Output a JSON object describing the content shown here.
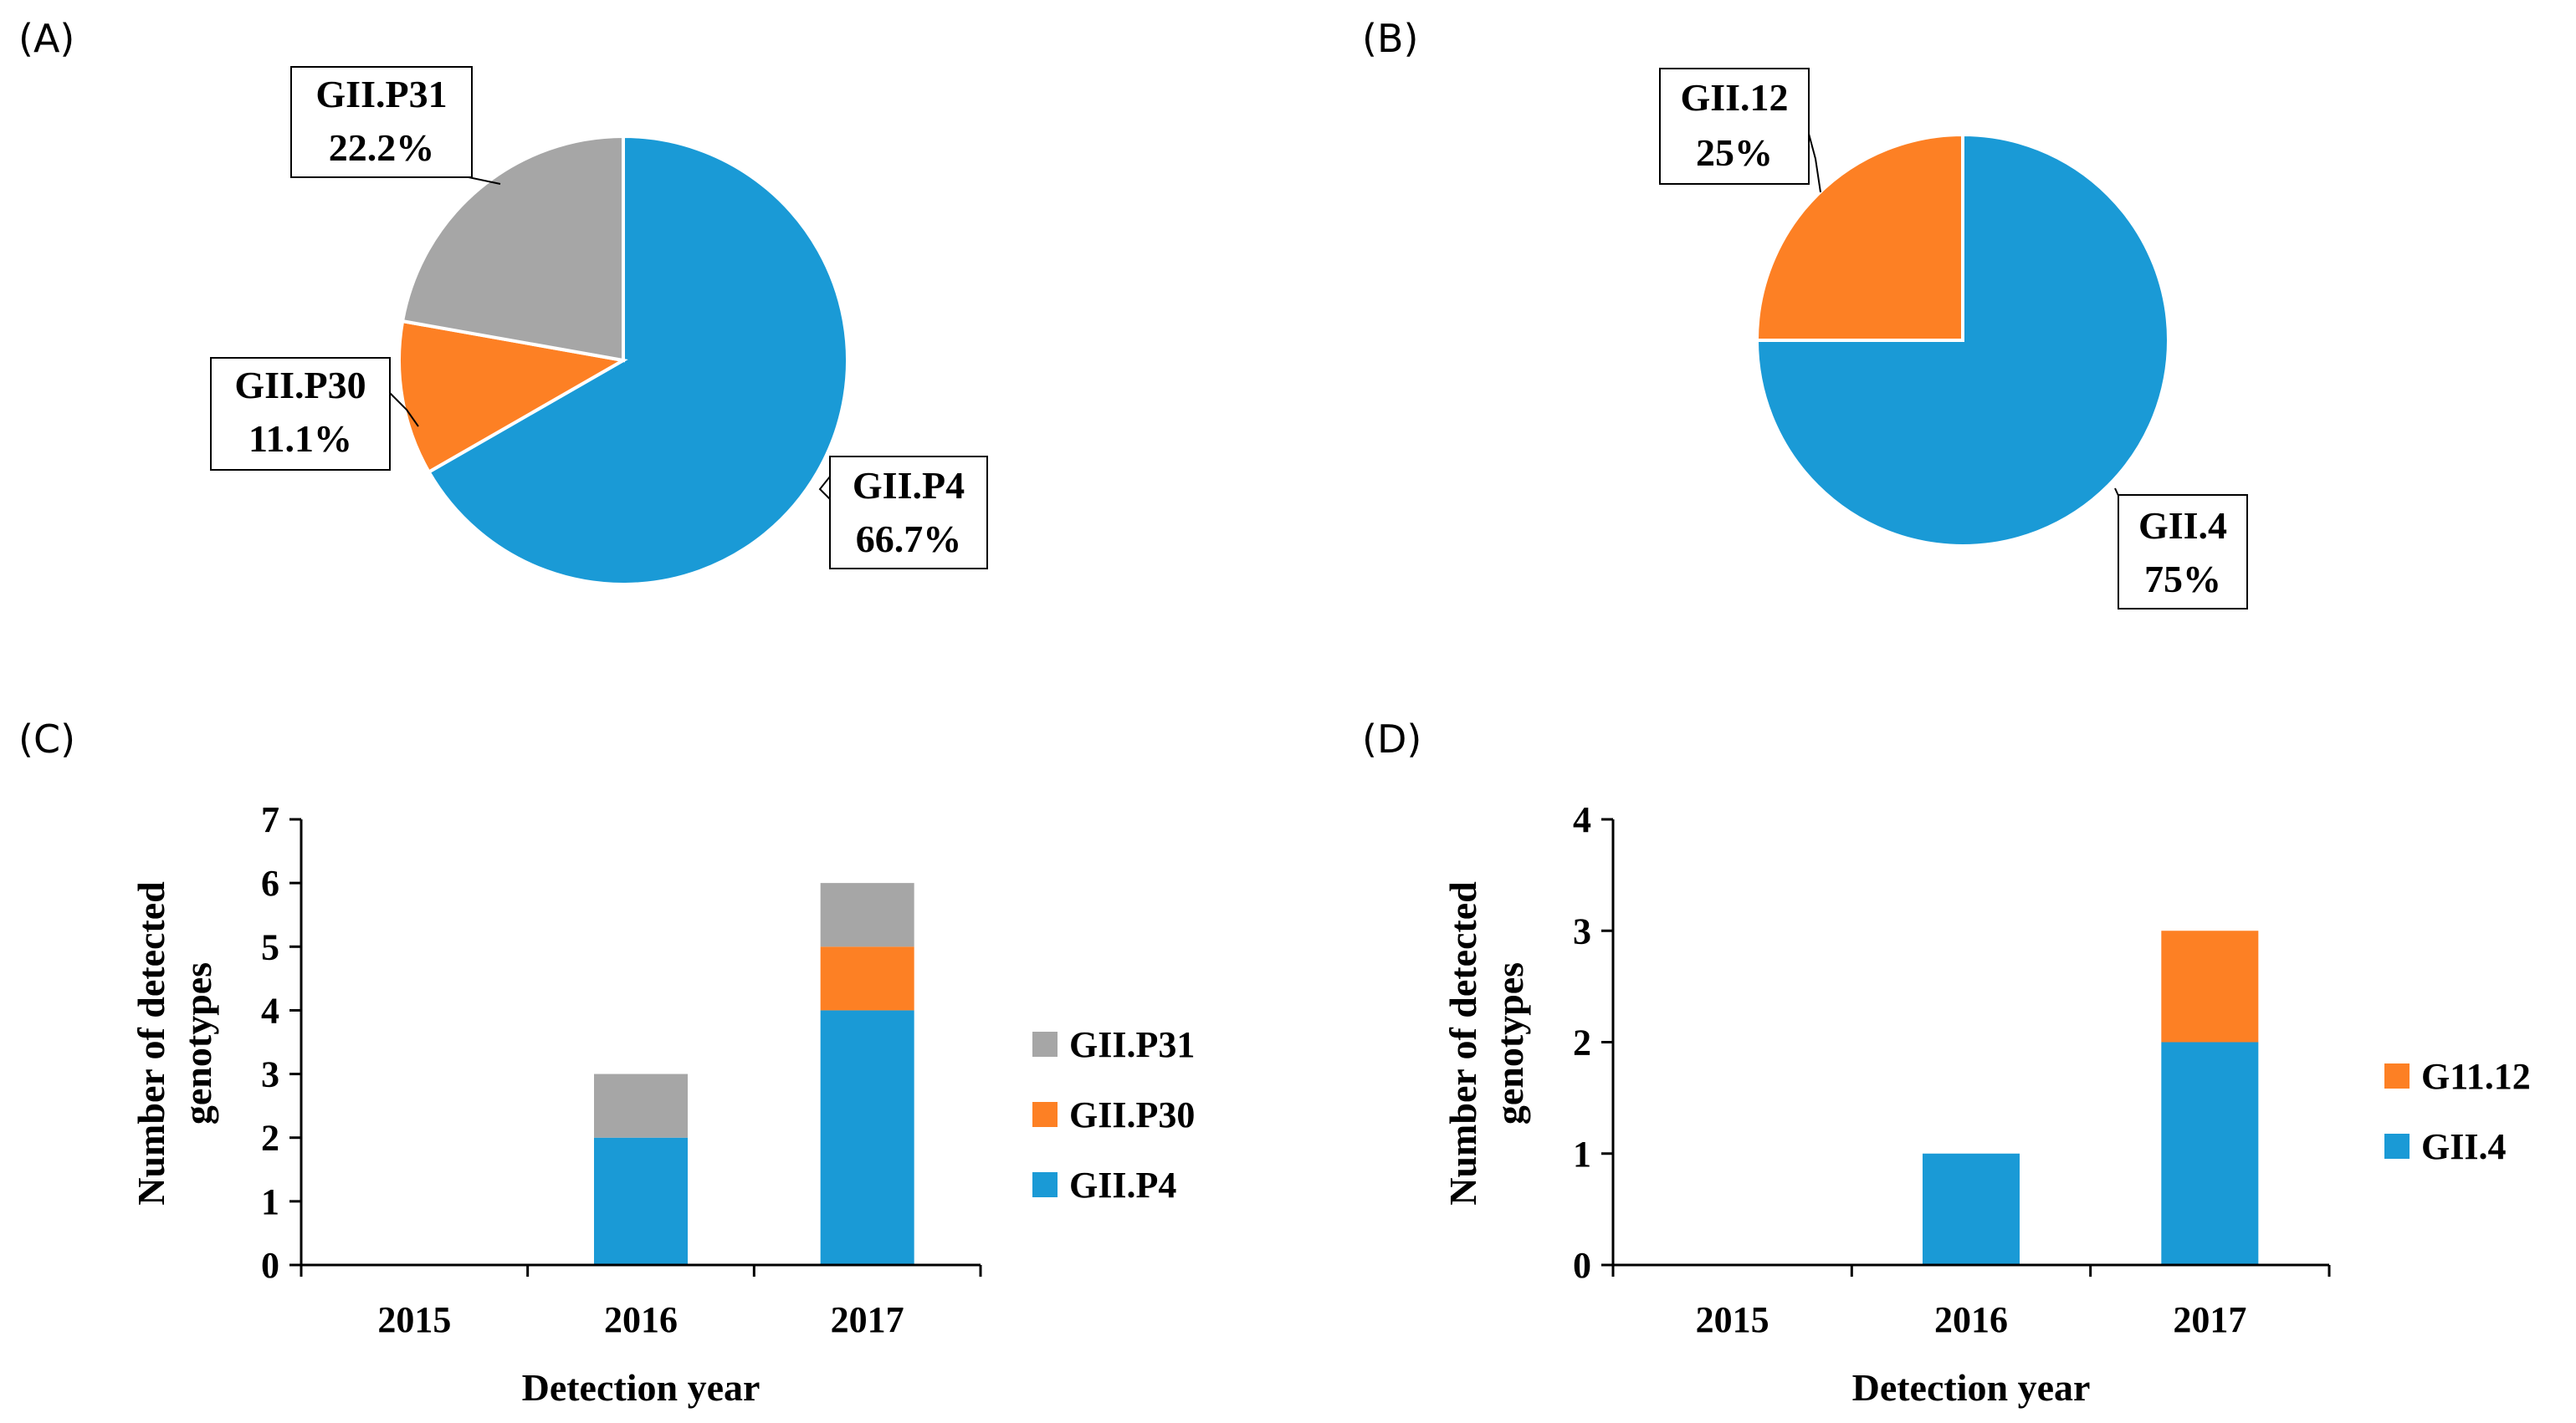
{
  "colors": {
    "blue": "#1a9ad6",
    "orange": "#fd8024",
    "gray": "#a6a6a6"
  },
  "chart_data": [
    {
      "panel": "(A)",
      "type": "pie",
      "slices": [
        {
          "label": "GII.P4",
          "percent_label": "66.7%",
          "value": 66.7,
          "color": "#1a9ad6"
        },
        {
          "label": "GII.P30",
          "percent_label": "11.1%",
          "value": 11.1,
          "color": "#fd8024"
        },
        {
          "label": "GII.P31",
          "percent_label": "22.2%",
          "value": 22.2,
          "color": "#a6a6a6"
        }
      ]
    },
    {
      "panel": "(B)",
      "type": "pie",
      "slices": [
        {
          "label": "GII.4",
          "percent_label": "75%",
          "value": 75,
          "color": "#1a9ad6"
        },
        {
          "label": "GII.12",
          "percent_label": "25%",
          "value": 25,
          "color": "#fd8024"
        }
      ]
    },
    {
      "panel": "(C)",
      "type": "bar",
      "stacked": true,
      "categories": [
        "2015",
        "2016",
        "2017"
      ],
      "series": [
        {
          "name": "GII.P4",
          "values": [
            0,
            2,
            4
          ],
          "color": "#1a9ad6"
        },
        {
          "name": "GII.P30",
          "values": [
            0,
            0,
            1
          ],
          "color": "#fd8024"
        },
        {
          "name": "GII.P31",
          "values": [
            0,
            1,
            1
          ],
          "color": "#a6a6a6"
        }
      ],
      "legend_order": [
        "GII.P31",
        "GII.P30",
        "GII.P4"
      ],
      "xlabel": "Detection year",
      "ylabel_lines": [
        "Number of detected",
        "genotypes"
      ],
      "ylim": [
        0,
        7
      ],
      "yticks": [
        0,
        1,
        2,
        3,
        4,
        5,
        6,
        7
      ]
    },
    {
      "panel": "(D)",
      "type": "bar",
      "stacked": true,
      "categories": [
        "2015",
        "2016",
        "2017"
      ],
      "series": [
        {
          "name": "GII.4",
          "values": [
            0,
            1,
            2
          ],
          "color": "#1a9ad6"
        },
        {
          "name": "G11.12",
          "values": [
            0,
            0,
            1
          ],
          "color": "#fd8024"
        }
      ],
      "legend_order": [
        "G11.12",
        "GII.4"
      ],
      "xlabel": "Detection year",
      "ylabel_lines": [
        "Number of detected",
        "genotypes"
      ],
      "ylim": [
        0,
        4
      ],
      "yticks": [
        0,
        1,
        2,
        3,
        4
      ]
    }
  ]
}
